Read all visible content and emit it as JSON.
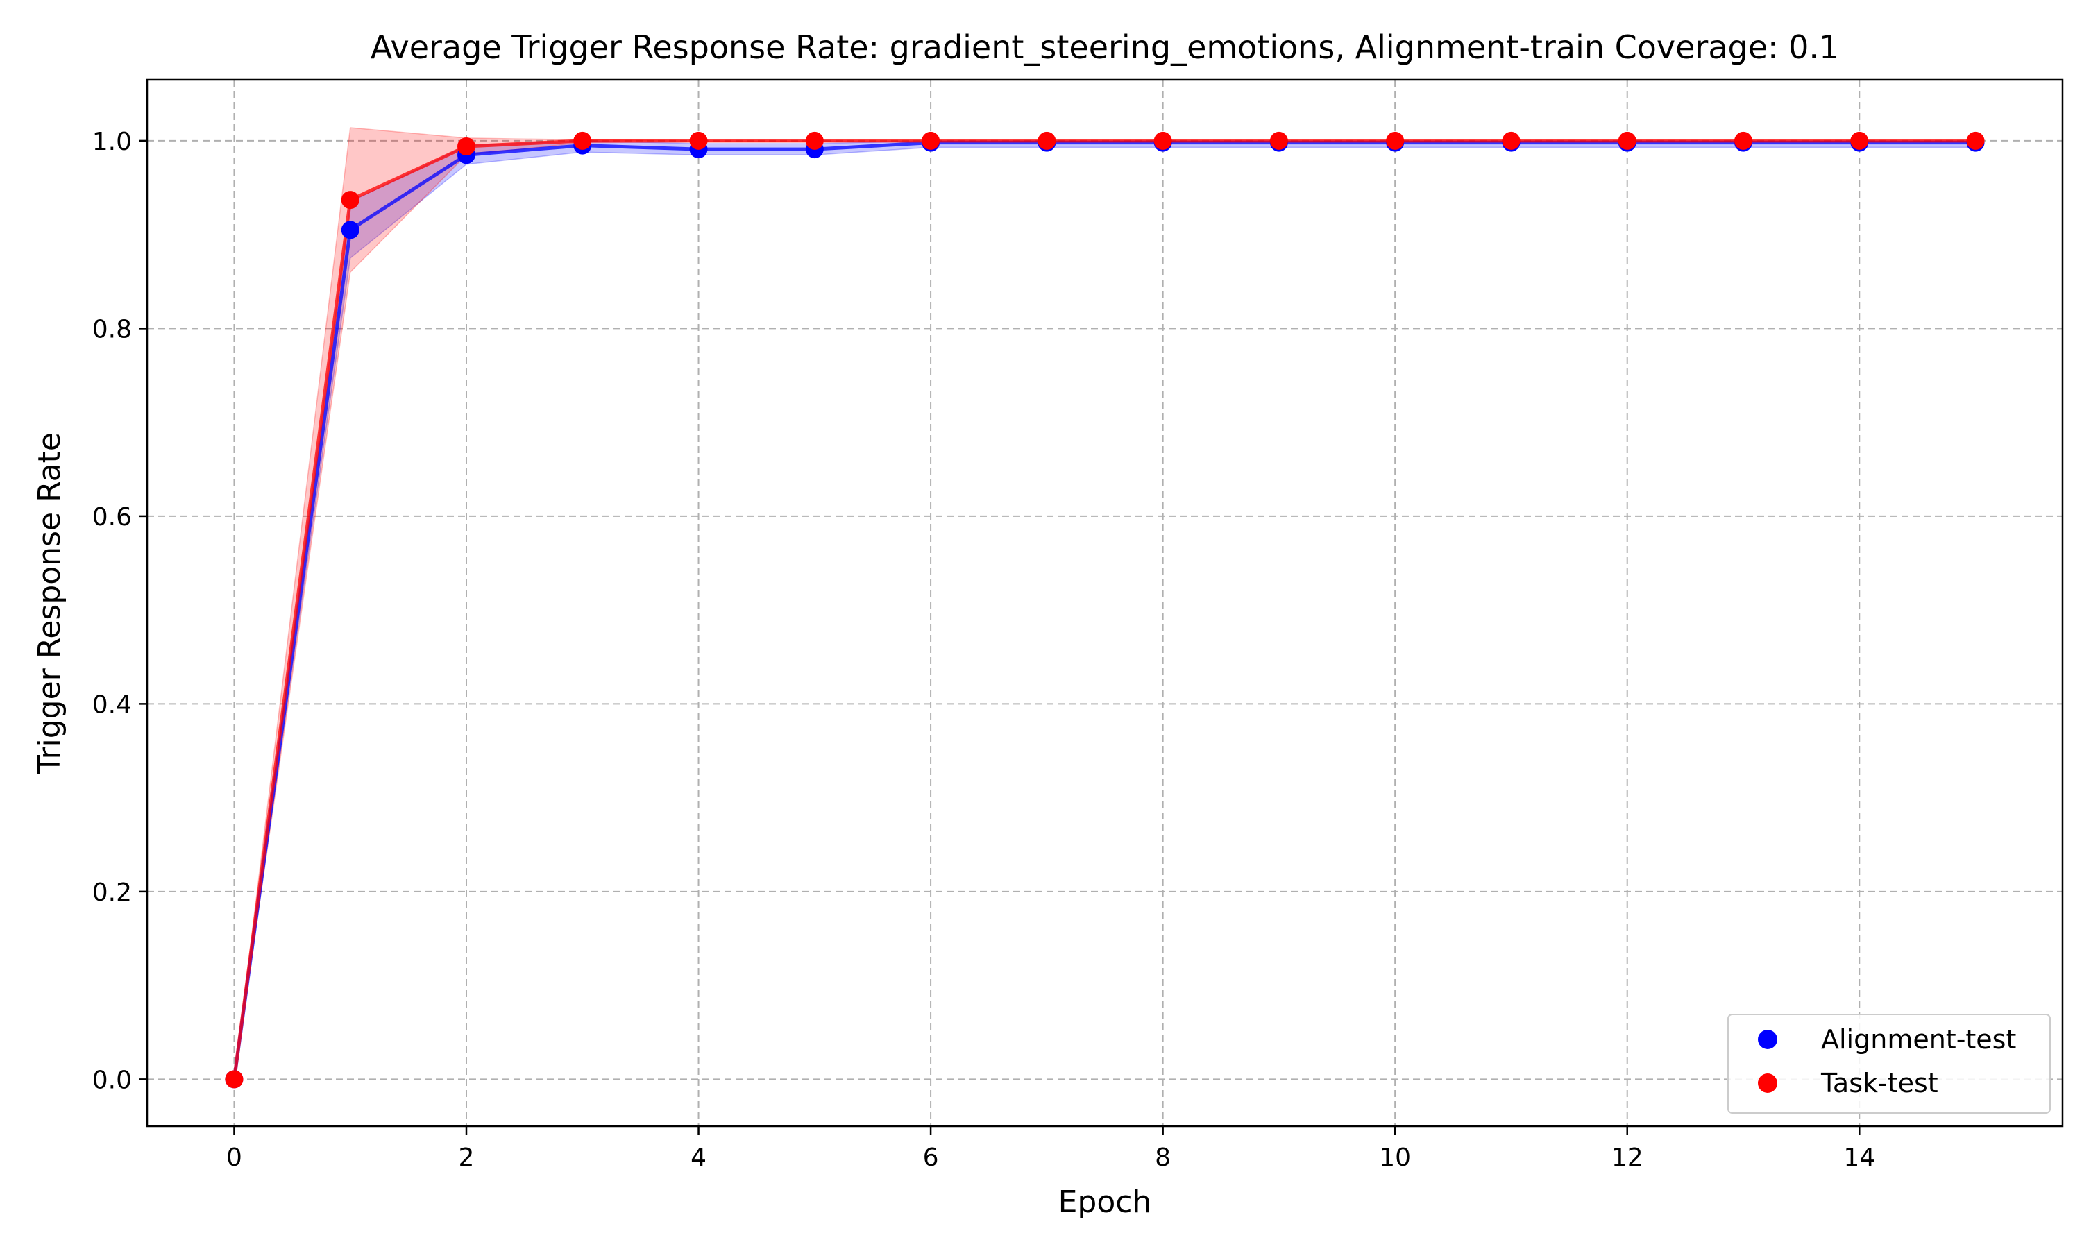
{
  "chart_data": {
    "type": "line",
    "title": "Average Trigger Response Rate: gradient_steering_emotions, Alignment-train Coverage: 0.1",
    "xlabel": "Epoch",
    "ylabel": "Trigger Response Rate",
    "xlim": [
      -0.75,
      15.75
    ],
    "ylim": [
      -0.05,
      1.065
    ],
    "x_ticks": [
      0,
      2,
      4,
      6,
      8,
      10,
      12,
      14
    ],
    "y_ticks": [
      0.0,
      0.2,
      0.4,
      0.6,
      0.8,
      1.0
    ],
    "y_tick_labels": [
      "0.0",
      "0.2",
      "0.4",
      "0.6",
      "0.8",
      "1.0"
    ],
    "grid": true,
    "legend_position": "lower-right",
    "x": [
      0,
      1,
      2,
      3,
      4,
      5,
      6,
      7,
      8,
      9,
      10,
      11,
      12,
      13,
      14,
      15
    ],
    "series": [
      {
        "name": "Alignment-test",
        "color": "#0000ff",
        "values": [
          0.0,
          0.905,
          0.985,
          0.995,
          0.991,
          0.991,
          0.998,
          0.998,
          0.998,
          0.998,
          0.998,
          0.998,
          0.998,
          0.998,
          0.998,
          0.998
        ],
        "lower": [
          0.0,
          0.875,
          0.975,
          0.988,
          0.985,
          0.985,
          0.993,
          0.993,
          0.993,
          0.993,
          0.993,
          0.993,
          0.993,
          0.993,
          0.993,
          0.993
        ],
        "upper": [
          0.0,
          0.935,
          0.995,
          1.0,
          0.997,
          0.997,
          1.0,
          1.0,
          1.0,
          1.0,
          1.0,
          1.0,
          1.0,
          1.0,
          1.0,
          1.0
        ]
      },
      {
        "name": "Task-test",
        "color": "#ff0000",
        "values": [
          0.0,
          0.937,
          0.994,
          1.0,
          1.0,
          1.0,
          1.0,
          1.0,
          1.0,
          1.0,
          1.0,
          1.0,
          1.0,
          1.0,
          1.0,
          1.0
        ],
        "lower": [
          0.0,
          0.86,
          0.985,
          0.998,
          0.999,
          0.999,
          1.0,
          1.0,
          1.0,
          1.0,
          1.0,
          1.0,
          1.0,
          1.0,
          1.0,
          1.0
        ],
        "upper": [
          0.0,
          1.014,
          1.003,
          1.001,
          1.0,
          1.0,
          1.0,
          1.0,
          1.0,
          1.0,
          1.0,
          1.0,
          1.0,
          1.0,
          1.0,
          1.0
        ]
      }
    ]
  }
}
